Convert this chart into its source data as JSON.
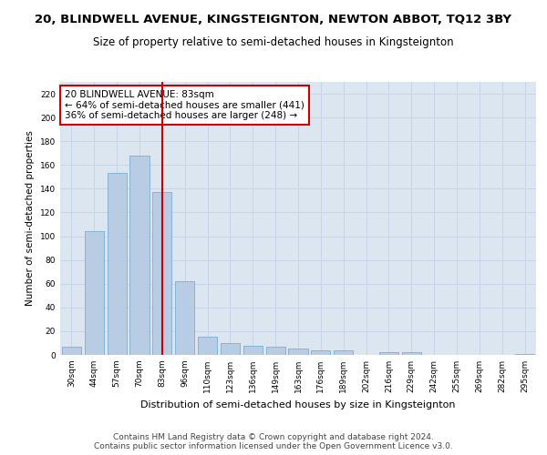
{
  "title": "20, BLINDWELL AVENUE, KINGSTEIGNTON, NEWTON ABBOT, TQ12 3BY",
  "subtitle": "Size of property relative to semi-detached houses in Kingsteignton",
  "xlabel": "Distribution of semi-detached houses by size in Kingsteignton",
  "ylabel": "Number of semi-detached properties",
  "categories": [
    "30sqm",
    "44sqm",
    "57sqm",
    "70sqm",
    "83sqm",
    "96sqm",
    "110sqm",
    "123sqm",
    "136sqm",
    "149sqm",
    "163sqm",
    "176sqm",
    "189sqm",
    "202sqm",
    "216sqm",
    "229sqm",
    "242sqm",
    "255sqm",
    "269sqm",
    "282sqm",
    "295sqm"
  ],
  "values": [
    7,
    104,
    153,
    168,
    137,
    62,
    15,
    10,
    8,
    7,
    5,
    4,
    4,
    0,
    2,
    2,
    0,
    0,
    0,
    0,
    1
  ],
  "bar_color": "#b8cce4",
  "bar_edge_color": "#7bafd4",
  "highlight_index": 4,
  "highlight_line_color": "#cc0000",
  "annotation_line1": "20 BLINDWELL AVENUE: 83sqm",
  "annotation_line2": "← 64% of semi-detached houses are smaller (441)",
  "annotation_line3": "36% of semi-detached houses are larger (248) →",
  "annotation_box_color": "#ffffff",
  "annotation_box_edge": "#cc0000",
  "ylim": [
    0,
    230
  ],
  "yticks": [
    0,
    20,
    40,
    60,
    80,
    100,
    120,
    140,
    160,
    180,
    200,
    220
  ],
  "grid_color": "#c8d4e8",
  "background_color": "#dce6f1",
  "footer": "Contains HM Land Registry data © Crown copyright and database right 2024.\nContains public sector information licensed under the Open Government Licence v3.0.",
  "title_fontsize": 9.5,
  "subtitle_fontsize": 8.5,
  "xlabel_fontsize": 8,
  "ylabel_fontsize": 7.5,
  "tick_fontsize": 6.5,
  "annotation_fontsize": 7.5,
  "footer_fontsize": 6.5
}
